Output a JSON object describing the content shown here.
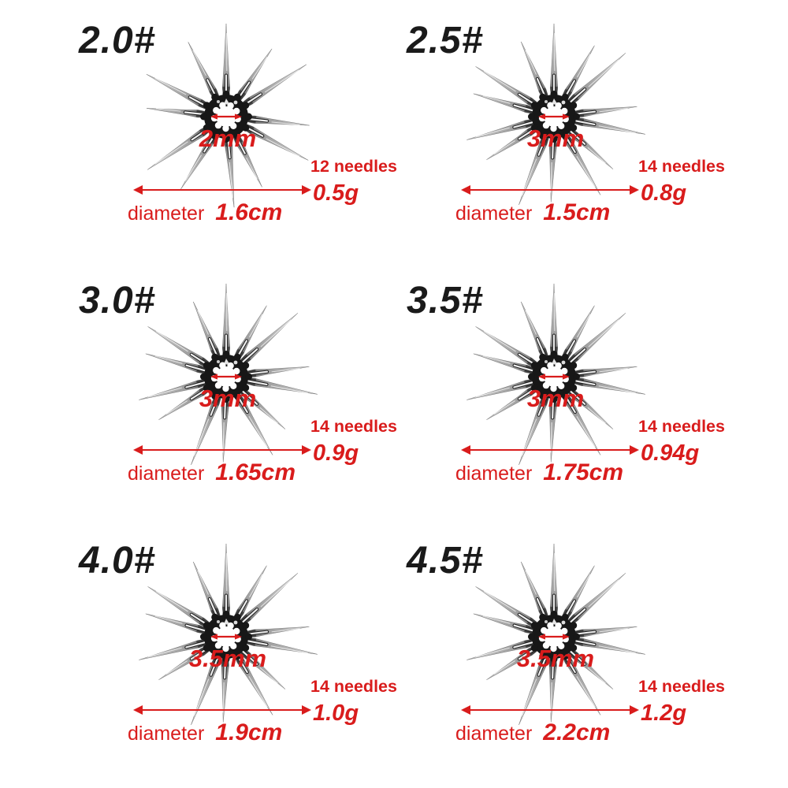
{
  "colors": {
    "accent_red": "#d91c1c",
    "label_black": "#1a1a1a",
    "needle_inner_grey": "#3a3a3a",
    "needle_mid_grey": "#9a9a9a",
    "needle_tip_grey": "#dedede",
    "center_ring_dark": "#171717",
    "background": "#ffffff"
  },
  "icons": {
    "diameter_arrow": "double-headed-horizontal-arrow",
    "hole_diameter_arrow": "small-double-headed-arrow-across-center-hole"
  },
  "variants": [
    {
      "size_label": "2.0#",
      "hole_diameter": "2mm",
      "needle_count": 12,
      "needle_count_label": "12 needles",
      "weight": "0.5g",
      "diameter_label": "diameter",
      "diameter_value": "1.6cm"
    },
    {
      "size_label": "2.5#",
      "hole_diameter": "3mm",
      "needle_count": 14,
      "needle_count_label": "14 needles",
      "weight": "0.8g",
      "diameter_label": "diameter",
      "diameter_value": "1.5cm"
    },
    {
      "size_label": "3.0#",
      "hole_diameter": "3mm",
      "needle_count": 14,
      "needle_count_label": "14 needles",
      "weight": "0.9g",
      "diameter_label": "diameter",
      "diameter_value": "1.65cm"
    },
    {
      "size_label": "3.5#",
      "hole_diameter": "3mm",
      "needle_count": 14,
      "needle_count_label": "14 needles",
      "weight": "0.94g",
      "diameter_label": "diameter",
      "diameter_value": "1.75cm"
    },
    {
      "size_label": "4.0#",
      "hole_diameter": "3.5mm",
      "needle_count": 14,
      "needle_count_label": "14 needles",
      "weight": "1.0g",
      "diameter_label": "diameter",
      "diameter_value": "1.9cm"
    },
    {
      "size_label": "4.5#",
      "hole_diameter": "3.5mm",
      "needle_count": 14,
      "needle_count_label": "14 needles",
      "weight": "1.2g",
      "diameter_label": "diameter",
      "diameter_value": "2.2cm"
    }
  ]
}
